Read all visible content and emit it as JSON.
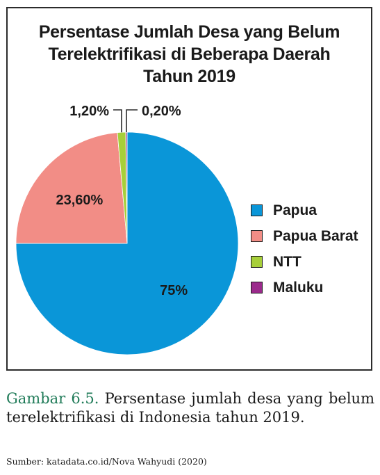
{
  "chart_data": {
    "type": "pie",
    "title_lines": [
      "Persentase Jumlah Desa yang Belum",
      "Terelektrifikasi di Beberapa Daerah",
      "Tahun 2019"
    ],
    "slices": [
      {
        "label": "Papua",
        "value": 75,
        "value_label": "75%",
        "color": "#0a96d8"
      },
      {
        "label": "Papua Barat",
        "value": 23.6,
        "value_label": "23,60%",
        "color": "#f28d86"
      },
      {
        "label": "NTT",
        "value": 1.2,
        "value_label": "1,20%",
        "color": "#a7cf3a"
      },
      {
        "label": "Maluku",
        "value": 0.2,
        "value_label": "0,20%",
        "color": "#9b2a8c"
      }
    ],
    "legend_position": "right",
    "start_angle": "12 o'clock, clockwise"
  },
  "caption": {
    "figure_label": "Gambar 6.5.",
    "text": "Persentase jumlah desa yang belum terelektrifikasi di Indonesia tahun 2019."
  },
  "source": "Sumber: katadata.co.id/Nova Wahyudi (2020)"
}
